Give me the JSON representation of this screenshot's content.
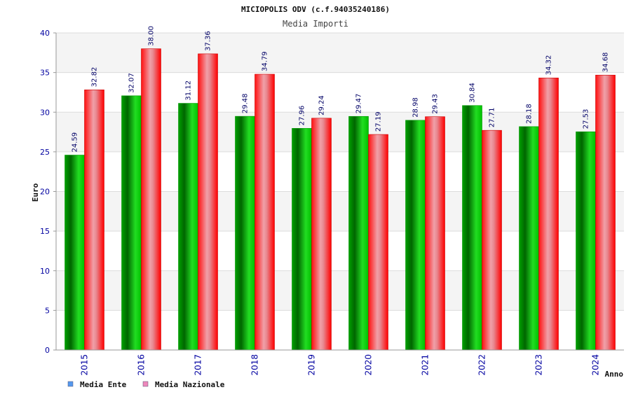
{
  "chart_data": {
    "type": "bar",
    "title": "MICIOPOLIS ODV (c.f.94035240186)",
    "subtitle": "Media Importi",
    "xlabel": "Anno",
    "ylabel": "Euro",
    "ylim": [
      0,
      40
    ],
    "yticks": [
      "0",
      "5",
      "10",
      "15",
      "20",
      "25",
      "30",
      "35",
      "40"
    ],
    "categories": [
      "2015",
      "2016",
      "2017",
      "2018",
      "2019",
      "2020",
      "2021",
      "2022",
      "2023",
      "2024"
    ],
    "series": [
      {
        "name": "Media Ente",
        "color": "#00cc00",
        "values": [
          24.59,
          32.07,
          31.12,
          29.48,
          27.96,
          29.47,
          28.98,
          30.84,
          28.18,
          27.53
        ],
        "labels": [
          "24.59",
          "32.07",
          "31.12",
          "29.48",
          "27.96",
          "29.47",
          "28.98",
          "30.84",
          "28.18",
          "27.53"
        ]
      },
      {
        "name": "Media Nazionale",
        "color": "#ff0000",
        "values": [
          32.82,
          38.0,
          37.36,
          34.79,
          29.24,
          27.19,
          29.43,
          27.71,
          34.32,
          34.68
        ],
        "labels": [
          "32.82",
          "38.00",
          "37.36",
          "34.79",
          "29.24",
          "27.19",
          "29.43",
          "27.71",
          "34.32",
          "34.68"
        ]
      }
    ],
    "legend": {
      "placement": "bottom-left",
      "items": [
        {
          "label": "Media Ente",
          "swatch_color": "#5599ee"
        },
        {
          "label": "Media Nazionale",
          "swatch_color": "#ee88bb"
        }
      ]
    },
    "grid": true,
    "band_colors": [
      "#f4f4f4",
      "#ffffff"
    ]
  }
}
